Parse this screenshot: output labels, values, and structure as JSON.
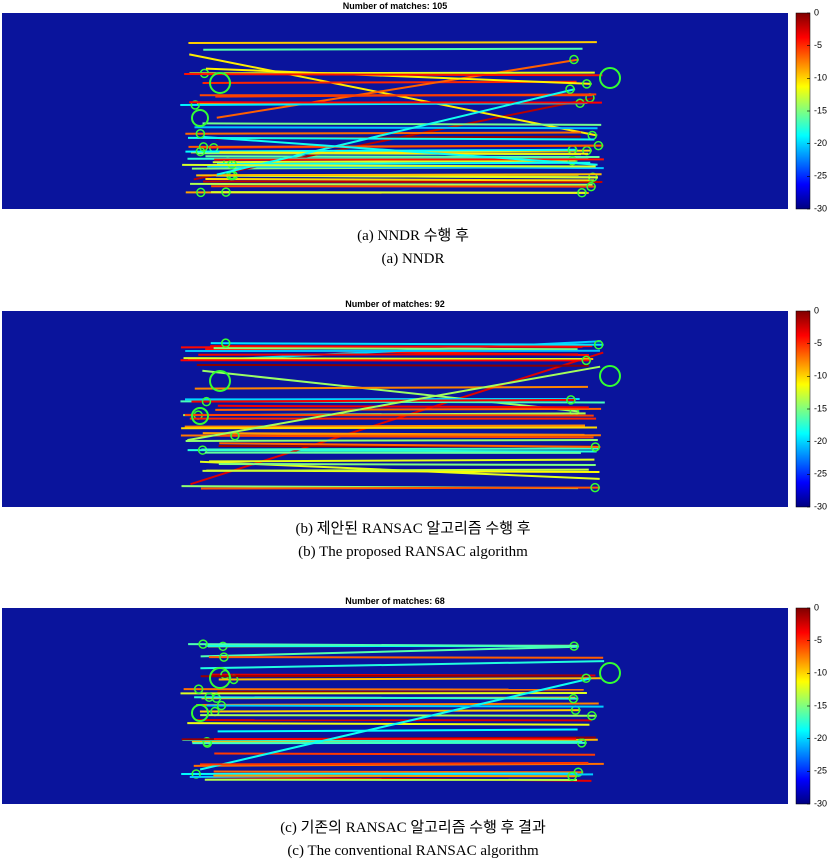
{
  "panels": [
    {
      "title": "Number of matches: 105",
      "colorbar": {
        "lim": [
          -30,
          0
        ],
        "ticks": [
          0,
          -5,
          -10,
          -15,
          -20,
          -25,
          -30
        ]
      },
      "caption_kr": "(a) NNDR 수행 후",
      "caption_en": "(a) NNDR"
    },
    {
      "title": "Number of matches: 92",
      "colorbar": {
        "lim": [
          -30,
          0
        ],
        "ticks": [
          0,
          -5,
          -10,
          -15,
          -20,
          -25,
          -30
        ]
      },
      "caption_kr": "(b) 제안된 RANSAC 알고리즘 수행 후",
      "caption_en": "(b) The proposed RANSAC algorithm"
    },
    {
      "title": "Number of matches: 68",
      "colorbar": {
        "lim": [
          -30,
          0
        ],
        "ticks": [
          0,
          -5,
          -10,
          -15,
          -20,
          -25,
          -30
        ]
      },
      "caption_kr": "(c) 기존의 RANSAC 알고리즘 수행 후 결과",
      "caption_en": "(c) The conventional RANSAC algorithm"
    }
  ]
}
